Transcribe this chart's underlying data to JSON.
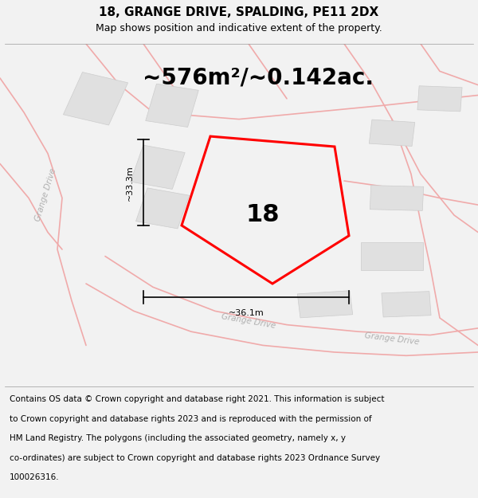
{
  "title": "18, GRANGE DRIVE, SPALDING, PE11 2DX",
  "subtitle": "Map shows position and indicative extent of the property.",
  "area_text": "~576m²/~0.142ac.",
  "label_number": "18",
  "dim_width": "~36.1m",
  "dim_height": "~33.3m",
  "footer_lines": [
    "Contains OS data © Crown copyright and database right 2021. This information is subject",
    "to Crown copyright and database rights 2023 and is reproduced with the permission of",
    "HM Land Registry. The polygons (including the associated geometry, namely x, y",
    "co-ordinates) are subject to Crown copyright and database rights 2023 Ordnance Survey",
    "100026316."
  ],
  "bg_color": "#f2f2f2",
  "map_bg": "#ffffff",
  "road_color": "#f0aaaa",
  "building_color": "#e0e0e0",
  "building_edge": "#cccccc",
  "boundary_color": "#ff0000",
  "road_label_color": "#b0b0b0",
  "title_fontsize": 11,
  "subtitle_fontsize": 9,
  "area_fontsize": 20,
  "label_fontsize": 22,
  "footer_fontsize": 7.5,
  "road_lw": 1.2,
  "boundary_lw": 2.2
}
